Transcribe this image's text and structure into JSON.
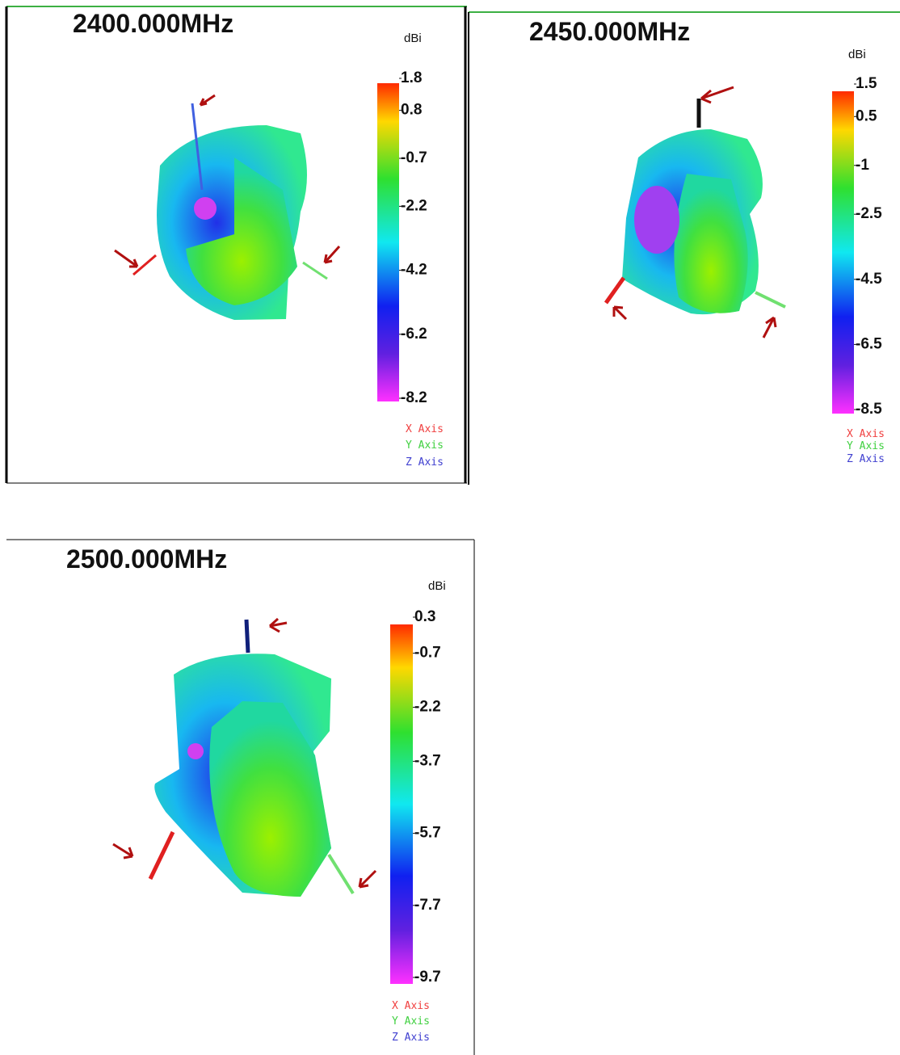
{
  "panels": [
    {
      "title": "2400.000MHz",
      "unit": "dBi",
      "scale": [
        1.8,
        0.8,
        -0.7,
        -2.2,
        -4.2,
        -6.2,
        -8.2
      ],
      "legend": [
        "X Axis",
        "Y Axis",
        "Z Axis"
      ]
    },
    {
      "title": "2450.000MHz",
      "unit": "dBi",
      "scale": [
        1.5,
        0.5,
        -1.0,
        -2.5,
        -4.5,
        -6.5,
        -8.5
      ],
      "legend": [
        "X Axis",
        "Y Axis",
        "Z Axis"
      ]
    },
    {
      "title": "2500.000MHz",
      "unit": "dBi",
      "scale": [
        0.3,
        -0.7,
        -2.2,
        -3.7,
        -5.7,
        -7.7,
        -9.7
      ],
      "legend": [
        "X Axis",
        "Y Axis",
        "Z Axis"
      ]
    }
  ]
}
